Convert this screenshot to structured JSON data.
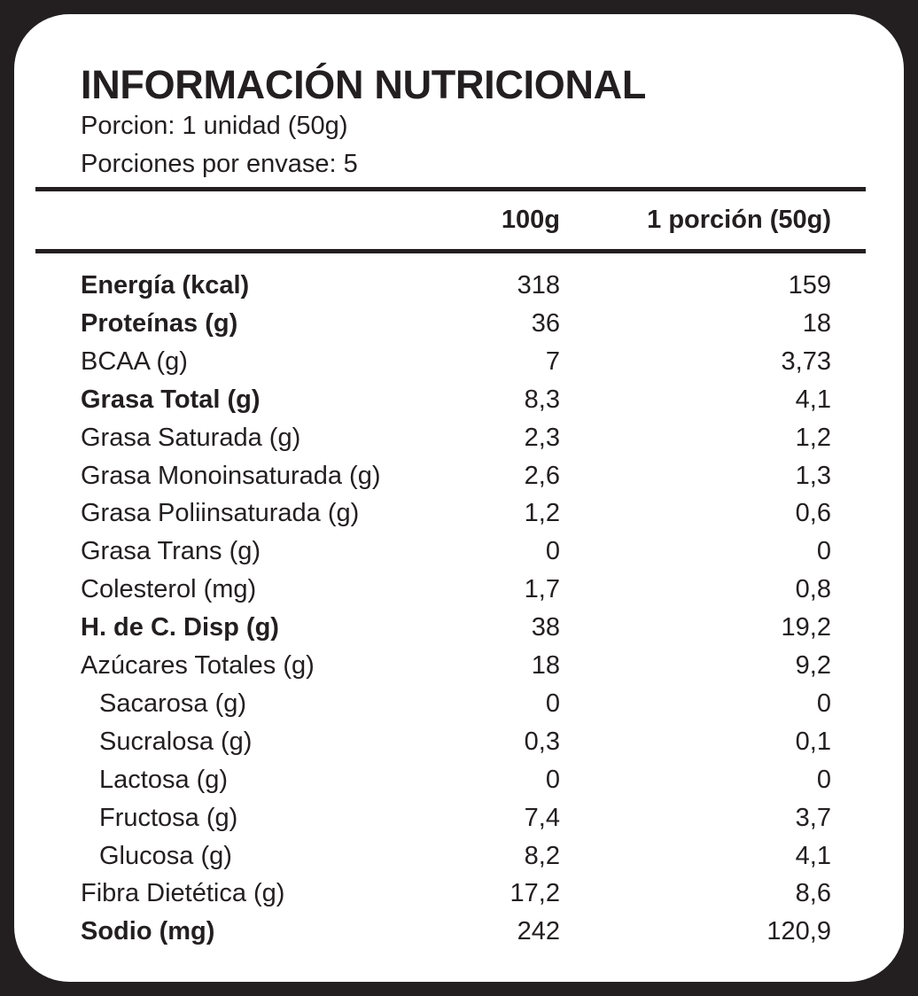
{
  "title": "INFORMACIÓN NUTRICIONAL",
  "serving": "Porcion: 1 unidad (50g)",
  "servings_per_container": "Porciones por envase: 5",
  "columns": [
    "100g",
    "1 porción (50g)"
  ],
  "rows": [
    {
      "label": "Energía (kcal)",
      "v100": "318",
      "vportion": "159",
      "bold": true,
      "indent": false
    },
    {
      "label": "Proteínas (g)",
      "v100": "36",
      "vportion": "18",
      "bold": true,
      "indent": false
    },
    {
      "label": "BCAA (g)",
      "v100": "7",
      "vportion": "3,73",
      "bold": false,
      "indent": false
    },
    {
      "label": "Grasa Total (g)",
      "v100": "8,3",
      "vportion": "4,1",
      "bold": true,
      "indent": false
    },
    {
      "label": "Grasa Saturada (g)",
      "v100": "2,3",
      "vportion": "1,2",
      "bold": false,
      "indent": false
    },
    {
      "label": "Grasa Monoinsaturada (g)",
      "v100": "2,6",
      "vportion": "1,3",
      "bold": false,
      "indent": false
    },
    {
      "label": "Grasa Poliinsaturada (g)",
      "v100": "1,2",
      "vportion": "0,6",
      "bold": false,
      "indent": false
    },
    {
      "label": "Grasa Trans (g)",
      "v100": "0",
      "vportion": "0",
      "bold": false,
      "indent": false
    },
    {
      "label": "Colesterol (mg)",
      "v100": "1,7",
      "vportion": "0,8",
      "bold": false,
      "indent": false
    },
    {
      "label": "H. de C. Disp (g)",
      "v100": "38",
      "vportion": "19,2",
      "bold": true,
      "indent": false
    },
    {
      "label": "Azúcares Totales (g)",
      "v100": "18",
      "vportion": "9,2",
      "bold": false,
      "indent": false
    },
    {
      "label": "Sacarosa (g)",
      "v100": "0",
      "vportion": "0",
      "bold": false,
      "indent": true
    },
    {
      "label": "Sucralosa (g)",
      "v100": "0,3",
      "vportion": "0,1",
      "bold": false,
      "indent": true
    },
    {
      "label": "Lactosa (g)",
      "v100": "0",
      "vportion": "0",
      "bold": false,
      "indent": true
    },
    {
      "label": "Fructosa (g)",
      "v100": "7,4",
      "vportion": "3,7",
      "bold": false,
      "indent": true
    },
    {
      "label": "Glucosa (g)",
      "v100": "8,2",
      "vportion": "4,1",
      "bold": false,
      "indent": true
    },
    {
      "label": "Fibra Dietética (g)",
      "v100": "17,2",
      "vportion": "8,6",
      "bold": false,
      "indent": false
    },
    {
      "label": "Sodio (mg)",
      "v100": "242",
      "vportion": "120,9",
      "bold": true,
      "indent": false
    }
  ]
}
